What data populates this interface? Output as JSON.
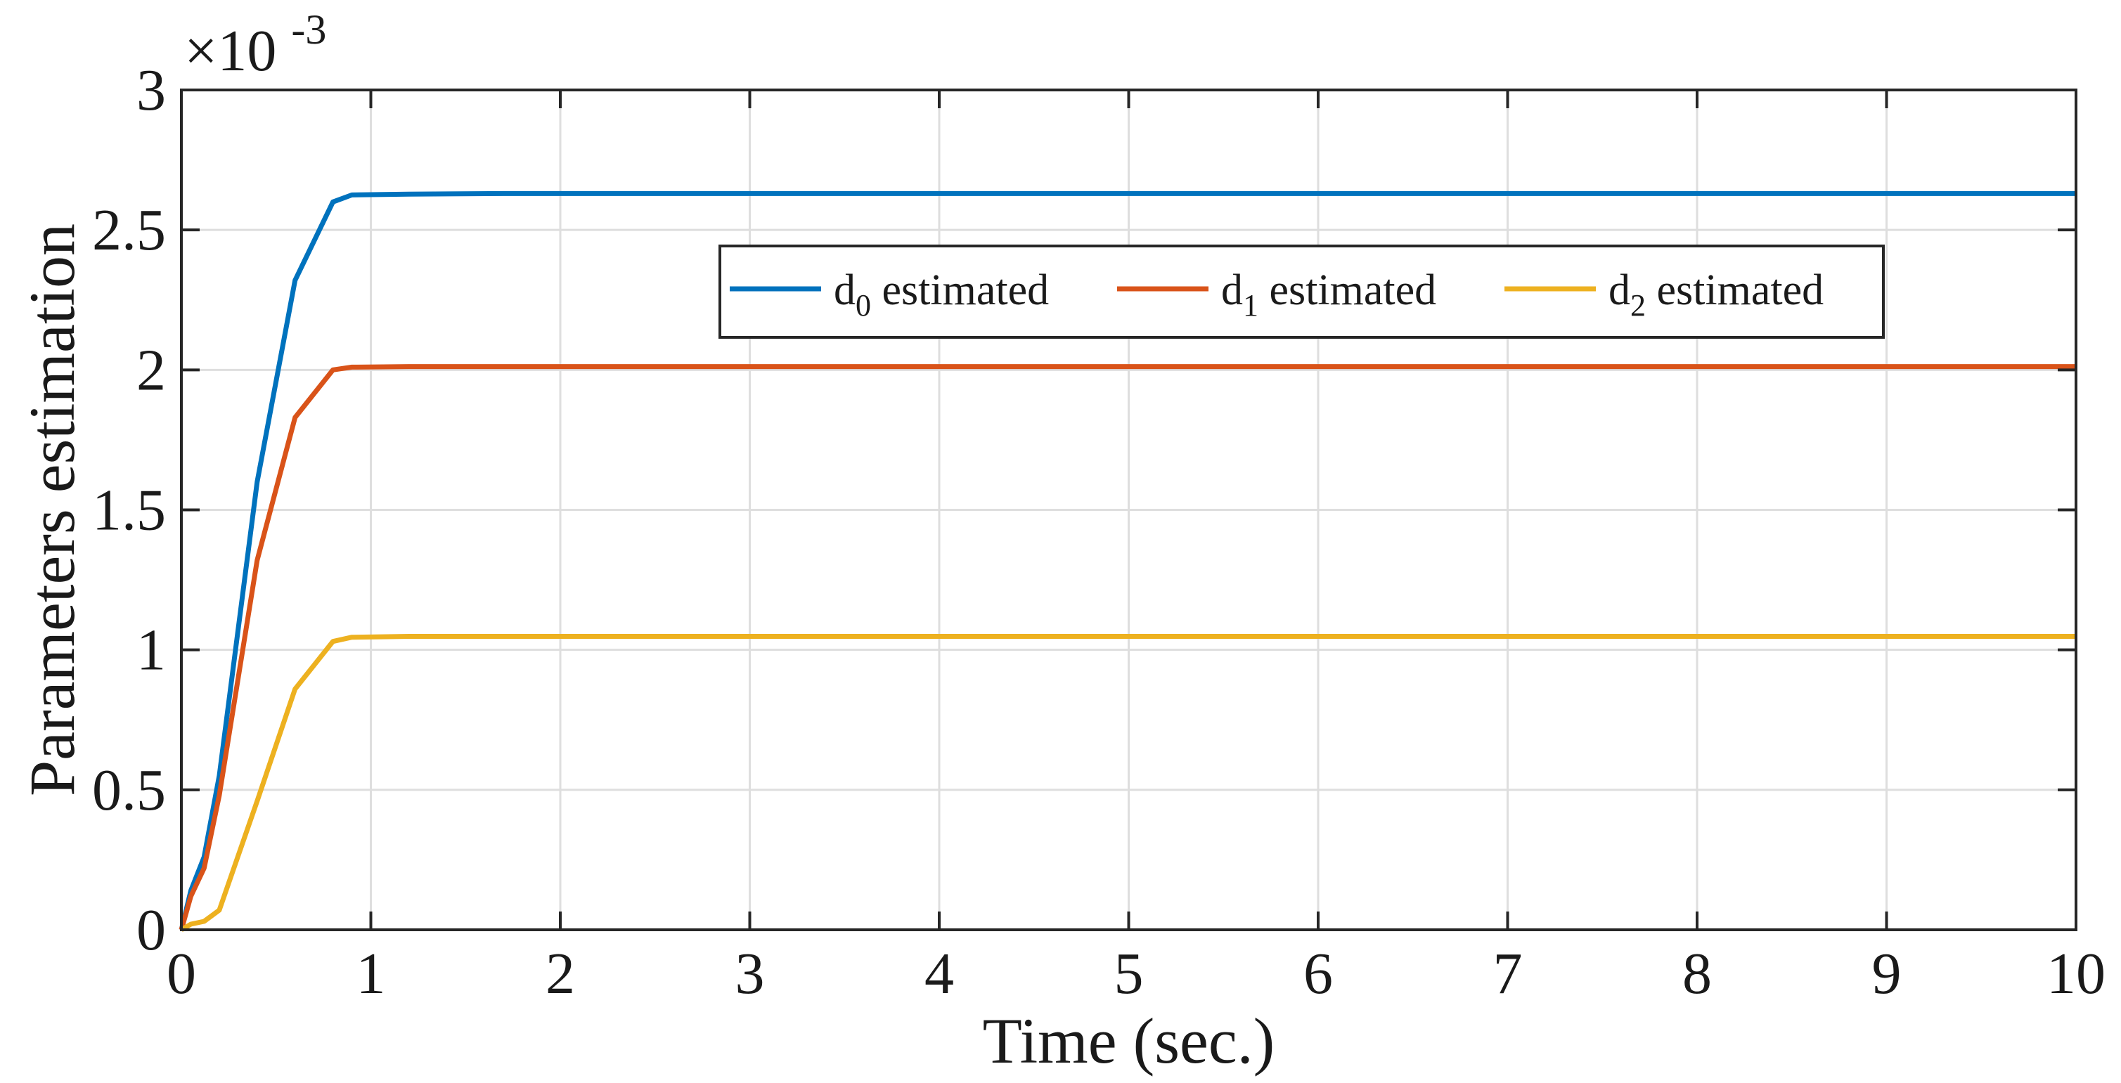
{
  "chart_data": {
    "type": "line",
    "title": "",
    "xlabel": "Time (sec.)",
    "ylabel": "Parameters estimation",
    "y_multiplier": {
      "base": "×10",
      "exponent": "-3"
    },
    "xlim": [
      0,
      10
    ],
    "ylim": [
      0,
      3
    ],
    "x_ticks": [
      0,
      1,
      2,
      3,
      4,
      5,
      6,
      7,
      8,
      9,
      10
    ],
    "x_tick_labels": [
      "0",
      "1",
      "2",
      "3",
      "4",
      "5",
      "6",
      "7",
      "8",
      "9",
      "10"
    ],
    "y_ticks": [
      0,
      0.5,
      1,
      1.5,
      2,
      2.5,
      3
    ],
    "y_tick_labels": [
      "0",
      "0.5",
      "1",
      "1.5",
      "2",
      "2.5",
      "3"
    ],
    "grid": true,
    "legend_position": "top-center",
    "legend_orientation": "horizontal",
    "series": [
      {
        "name": "d0 estimated",
        "label_main": "d",
        "label_sub": "0",
        "label_rest": " estimated",
        "color": "#0072BD",
        "x": [
          0,
          0.05,
          0.12,
          0.2,
          0.4,
          0.6,
          0.8,
          0.9,
          1.2,
          1.7,
          10
        ],
        "y": [
          0,
          0.14,
          0.26,
          0.55,
          1.6,
          2.32,
          2.6,
          2.625,
          2.628,
          2.63,
          2.63
        ]
      },
      {
        "name": "d1 estimated",
        "label_main": "d",
        "label_sub": "1",
        "label_rest": " estimated",
        "color": "#D95319",
        "x": [
          0,
          0.05,
          0.12,
          0.2,
          0.4,
          0.6,
          0.8,
          0.9,
          1.2,
          10
        ],
        "y": [
          0,
          0.12,
          0.22,
          0.48,
          1.32,
          1.83,
          2.0,
          2.01,
          2.012,
          2.012
        ]
      },
      {
        "name": "d2 estimated",
        "label_main": "d",
        "label_sub": "2",
        "label_rest": " estimated",
        "color": "#EDB120",
        "x": [
          0,
          0.05,
          0.12,
          0.2,
          0.4,
          0.6,
          0.8,
          0.9,
          1.2,
          10
        ],
        "y": [
          0,
          0.02,
          0.03,
          0.07,
          0.46,
          0.86,
          1.03,
          1.045,
          1.048,
          1.048
        ]
      }
    ]
  }
}
